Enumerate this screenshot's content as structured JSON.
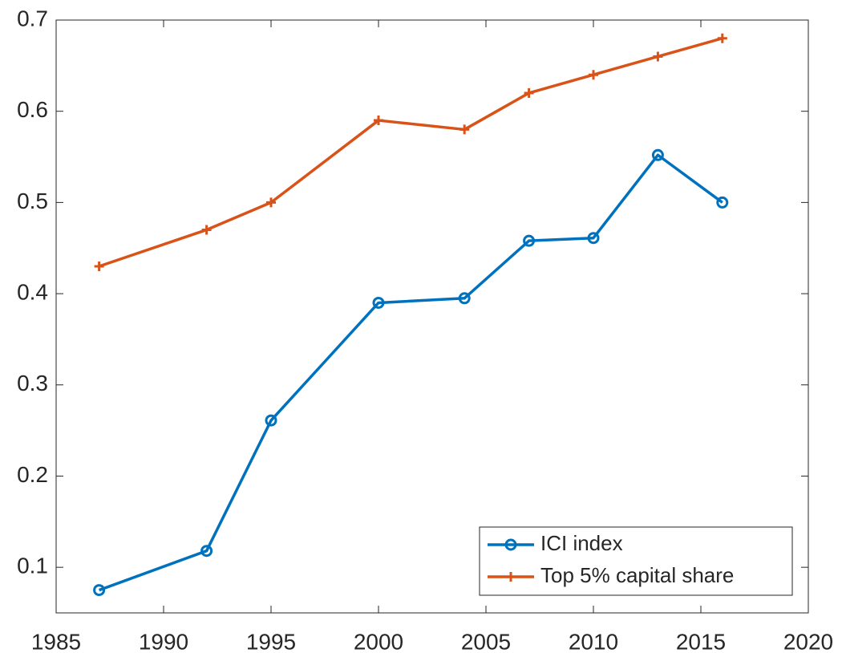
{
  "chart_data": {
    "type": "line",
    "x": [
      1987,
      1992,
      1995,
      2000,
      2004,
      2007,
      2010,
      2013,
      2016
    ],
    "series": [
      {
        "name": "ICI index",
        "color": "#0072BD",
        "marker": "circle",
        "values": [
          0.075,
          0.118,
          0.261,
          0.39,
          0.395,
          0.458,
          0.461,
          0.552,
          0.5
        ]
      },
      {
        "name": "Top 5% capital share",
        "color": "#D95319",
        "marker": "plus",
        "values": [
          0.43,
          0.47,
          0.5,
          0.59,
          0.58,
          0.62,
          0.64,
          0.66,
          0.68
        ]
      }
    ],
    "xlim": [
      1985,
      2020
    ],
    "xticks": [
      1985,
      1990,
      1995,
      2000,
      2005,
      2010,
      2015,
      2020
    ],
    "ylim": [
      0.05,
      0.7
    ],
    "yticks": [
      0.1,
      0.2,
      0.3,
      0.4,
      0.5,
      0.6,
      0.7
    ],
    "legend": "lower right"
  }
}
